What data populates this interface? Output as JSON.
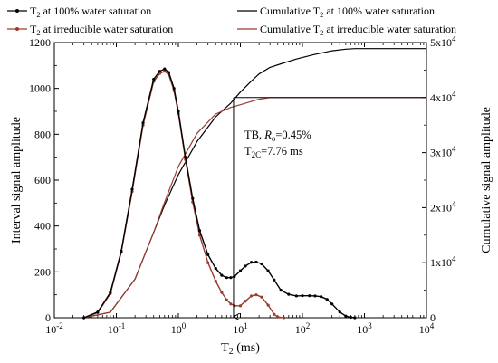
{
  "chart_data": {
    "type": "line",
    "x_scale": "log",
    "xlim": [
      0.01,
      10000
    ],
    "ylim_left": [
      0,
      1200
    ],
    "ylim_right": [
      0,
      50000
    ],
    "xlabel": {
      "main": "T",
      "sub": "2",
      "tail": " (ms)"
    },
    "ylabel_left": "Interval signal amplitude",
    "ylabel_right": "Cumulative signal amplitude",
    "x_ticks": [
      {
        "value": 0.01,
        "base": "10",
        "exp": "-2"
      },
      {
        "value": 0.1,
        "base": "10",
        "exp": "-1"
      },
      {
        "value": 1,
        "base": "10",
        "exp": "0"
      },
      {
        "value": 10,
        "base": "10",
        "exp": "1"
      },
      {
        "value": 100,
        "base": "10",
        "exp": "2"
      },
      {
        "value": 1000,
        "base": "10",
        "exp": "3"
      },
      {
        "value": 10000,
        "base": "10",
        "exp": "4"
      }
    ],
    "y_left_ticks": [
      "0",
      "200",
      "400",
      "600",
      "800",
      "1000",
      "1200"
    ],
    "y_right_ticks": [
      {
        "value": 0,
        "label": "0",
        "exp": ""
      },
      {
        "value": 10000,
        "label": "1x10",
        "exp": "4"
      },
      {
        "value": 20000,
        "label": "2x10",
        "exp": "4"
      },
      {
        "value": 30000,
        "label": "3x10",
        "exp": "4"
      },
      {
        "value": 40000,
        "label": "4x10",
        "exp": "4"
      },
      {
        "value": 50000,
        "label": "5x10",
        "exp": "4"
      }
    ],
    "legend": [
      {
        "pre": "T",
        "sub": "2",
        "post": " at 100% water saturation",
        "color": "#000000",
        "marker": true
      },
      {
        "pre": "Cumulative T",
        "sub": "2",
        "post": " at 100% water saturation",
        "color": "#000000",
        "marker": false
      },
      {
        "pre": "T",
        "sub": "2",
        "post": " at irreducible water saturation",
        "color": "#9b3a2e",
        "marker": true
      },
      {
        "pre": "Cumulative T",
        "sub": "2",
        "post": " at irreducible water saturation",
        "color": "#9b3a2e",
        "marker": false
      }
    ],
    "annotation": {
      "line1_pre": "TB, ",
      "line1_var": "R",
      "line1_sub": "o",
      "line1_post": "=0.45%",
      "line2_pre": "T",
      "line2_sub": "2C",
      "line2_post": "=7.76 ms",
      "cutoff_x": 7.76,
      "cutoff_cumulative": 40000
    },
    "colors": {
      "full_saturation": "#000000",
      "irreducible": "#9b3a2e"
    },
    "series": [
      {
        "name": "T2 at 100% water saturation",
        "axis": "left",
        "x": [
          0.03,
          0.05,
          0.08,
          0.12,
          0.18,
          0.27,
          0.4,
          0.5,
          0.6,
          0.7,
          0.85,
          1.0,
          1.3,
          1.7,
          2.2,
          3.0,
          4.0,
          5.0,
          6.0,
          7.0,
          8.0,
          10,
          12,
          15,
          18,
          22,
          28,
          35,
          45,
          60,
          80,
          100,
          130,
          160,
          200,
          250,
          300,
          400,
          500,
          600,
          700
        ],
        "y": [
          0,
          25,
          110,
          290,
          560,
          850,
          1040,
          1075,
          1085,
          1070,
          1000,
          900,
          700,
          520,
          380,
          275,
          215,
          185,
          175,
          175,
          180,
          205,
          225,
          242,
          243,
          235,
          205,
          165,
          120,
          102,
          95,
          96,
          96,
          95,
          92,
          80,
          60,
          25,
          7,
          2,
          0
        ]
      },
      {
        "name": "T2 at irreducible water saturation",
        "axis": "left",
        "x": [
          0.03,
          0.05,
          0.08,
          0.12,
          0.18,
          0.27,
          0.4,
          0.5,
          0.6,
          0.7,
          0.85,
          1.0,
          1.3,
          1.7,
          2.2,
          3.0,
          4.0,
          5.0,
          6.0,
          7.0,
          8.0,
          10,
          12,
          15,
          18,
          22,
          28,
          35,
          40,
          50
        ],
        "y": [
          0,
          22,
          105,
          285,
          550,
          840,
          1030,
          1065,
          1075,
          1060,
          990,
          890,
          690,
          505,
          360,
          240,
          160,
          110,
          78,
          60,
          52,
          52,
          72,
          95,
          100,
          90,
          55,
          15,
          3,
          0
        ]
      },
      {
        "name": "Cumulative T2 at 100% water saturation",
        "axis": "right",
        "x": [
          0.03,
          0.08,
          0.2,
          0.4,
          0.6,
          1.0,
          2.0,
          4.0,
          7.0,
          10,
          15,
          20,
          30,
          50,
          80,
          150,
          300,
          500,
          700,
          1000,
          10000
        ],
        "y": [
          0,
          1000,
          7000,
          15500,
          20500,
          26000,
          32000,
          36500,
          39000,
          41000,
          43000,
          44300,
          45500,
          46300,
          47000,
          47800,
          48500,
          48800,
          48900,
          48900,
          48900
        ]
      },
      {
        "name": "Cumulative T2 at irreducible water saturation",
        "axis": "right",
        "x": [
          0.03,
          0.08,
          0.2,
          0.4,
          0.6,
          1.0,
          2.0,
          4.0,
          7.0,
          10,
          15,
          20,
          30,
          50,
          100,
          1000,
          10000
        ],
        "y": [
          0,
          1000,
          7000,
          15500,
          21000,
          27500,
          33500,
          37000,
          38200,
          38700,
          39300,
          39700,
          40000,
          40000,
          40000,
          40000,
          40000
        ]
      }
    ]
  }
}
